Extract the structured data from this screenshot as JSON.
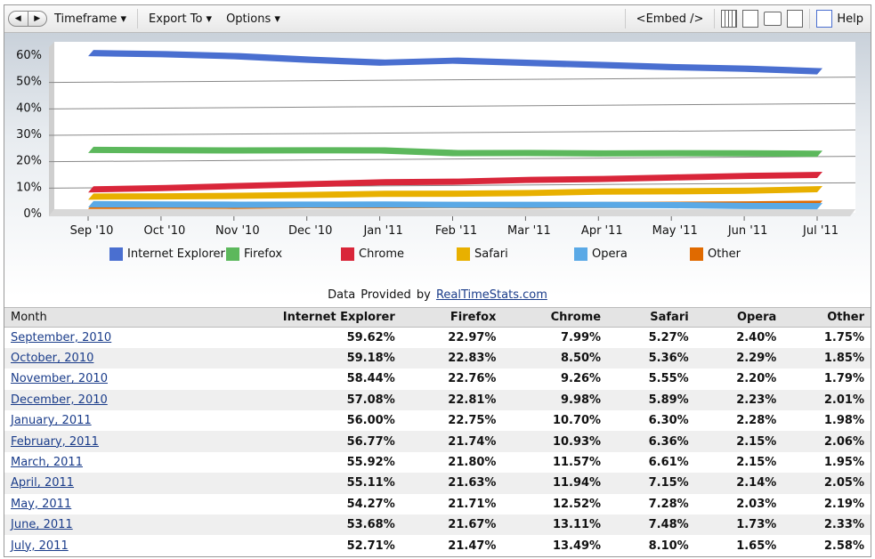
{
  "toolbar": {
    "timeframe": "Timeframe ▾",
    "export": "Export To ▾",
    "options": "Options ▾",
    "embed": "<Embed />",
    "help": "Help"
  },
  "provided": {
    "prefix": "Data  Provided  by",
    "link": "RealTimeStats.com"
  },
  "chart_data": {
    "type": "line",
    "categories": [
      "Sep '10",
      "Oct '10",
      "Nov '10",
      "Dec '10",
      "Jan '11",
      "Feb '11",
      "Mar '11",
      "Apr '11",
      "May '11",
      "Jun '11",
      "Jul '11"
    ],
    "yticks": [
      "0%",
      "10%",
      "20%",
      "30%",
      "40%",
      "50%",
      "60%"
    ],
    "ylim": [
      0,
      60
    ],
    "grid": true,
    "legend_position": "bottom",
    "series": [
      {
        "name": "Internet Explorer",
        "color": "#4a6fd0",
        "values": [
          59.62,
          59.18,
          58.44,
          57.08,
          56.0,
          56.77,
          55.92,
          55.11,
          54.27,
          53.68,
          52.71
        ]
      },
      {
        "name": "Firefox",
        "color": "#5cb85c",
        "values": [
          22.97,
          22.83,
          22.76,
          22.81,
          22.75,
          21.74,
          21.8,
          21.63,
          21.71,
          21.67,
          21.47
        ]
      },
      {
        "name": "Chrome",
        "color": "#d9263a",
        "values": [
          7.99,
          8.5,
          9.26,
          9.98,
          10.7,
          10.93,
          11.57,
          11.94,
          12.52,
          13.11,
          13.49
        ]
      },
      {
        "name": "Safari",
        "color": "#e8b000",
        "values": [
          5.27,
          5.36,
          5.55,
          5.89,
          6.3,
          6.36,
          6.61,
          7.15,
          7.28,
          7.48,
          8.1
        ]
      },
      {
        "name": "Opera",
        "color": "#5aa9e6",
        "values": [
          2.4,
          2.29,
          2.2,
          2.23,
          2.28,
          2.15,
          2.15,
          2.14,
          2.03,
          1.73,
          1.65
        ]
      },
      {
        "name": "Other",
        "color": "#e06a00",
        "values": [
          1.75,
          1.85,
          1.79,
          2.01,
          1.98,
          2.06,
          1.95,
          2.05,
          2.19,
          2.33,
          2.58
        ]
      }
    ]
  },
  "table": {
    "headers": [
      "Month",
      "Internet Explorer",
      "Firefox",
      "Chrome",
      "Safari",
      "Opera",
      "Other"
    ],
    "rows": [
      [
        "September, 2010",
        "59.62%",
        "22.97%",
        "7.99%",
        "5.27%",
        "2.40%",
        "1.75%"
      ],
      [
        "October, 2010",
        "59.18%",
        "22.83%",
        "8.50%",
        "5.36%",
        "2.29%",
        "1.85%"
      ],
      [
        "November, 2010",
        "58.44%",
        "22.76%",
        "9.26%",
        "5.55%",
        "2.20%",
        "1.79%"
      ],
      [
        "December, 2010",
        "57.08%",
        "22.81%",
        "9.98%",
        "5.89%",
        "2.23%",
        "2.01%"
      ],
      [
        "January, 2011",
        "56.00%",
        "22.75%",
        "10.70%",
        "6.30%",
        "2.28%",
        "1.98%"
      ],
      [
        "February, 2011",
        "56.77%",
        "21.74%",
        "10.93%",
        "6.36%",
        "2.15%",
        "2.06%"
      ],
      [
        "March, 2011",
        "55.92%",
        "21.80%",
        "11.57%",
        "6.61%",
        "2.15%",
        "1.95%"
      ],
      [
        "April, 2011",
        "55.11%",
        "21.63%",
        "11.94%",
        "7.15%",
        "2.14%",
        "2.05%"
      ],
      [
        "May, 2011",
        "54.27%",
        "21.71%",
        "12.52%",
        "7.28%",
        "2.03%",
        "2.19%"
      ],
      [
        "June, 2011",
        "53.68%",
        "21.67%",
        "13.11%",
        "7.48%",
        "1.73%",
        "2.33%"
      ],
      [
        "July, 2011",
        "52.71%",
        "21.47%",
        "13.49%",
        "8.10%",
        "1.65%",
        "2.58%"
      ]
    ]
  }
}
